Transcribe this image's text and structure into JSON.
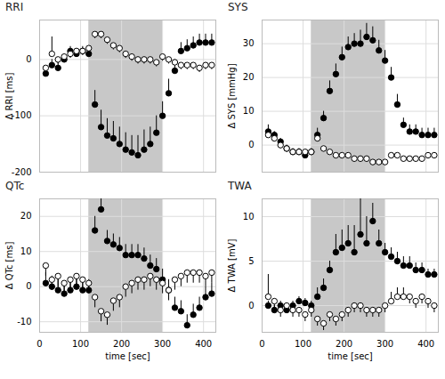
{
  "chart_data": [
    {
      "type": "scatter",
      "title": "RRI",
      "ylabel": "Δ RRI [ms]",
      "tick_labels": "y",
      "grid": true,
      "x": [
        15,
        30,
        45,
        60,
        75,
        90,
        105,
        120,
        135,
        150,
        165,
        180,
        195,
        210,
        225,
        240,
        255,
        270,
        285,
        300,
        315,
        330,
        345,
        360,
        375,
        390,
        405,
        420
      ],
      "xlim": [
        0,
        430
      ],
      "xticks": [
        0,
        100,
        200,
        300,
        400
      ],
      "ylim": [
        -200,
        70
      ],
      "yticks": [
        -200,
        -100,
        0
      ],
      "highlight": [
        120,
        300
      ],
      "series": [
        {
          "color": "#000000",
          "marker": "filled_circle",
          "values": [
            -25,
            -10,
            -15,
            0,
            15,
            10,
            15,
            10,
            -80,
            -120,
            -135,
            -140,
            -150,
            -160,
            -165,
            -170,
            -160,
            -150,
            -130,
            -100,
            -60,
            -20,
            15,
            20,
            25,
            30,
            30,
            30
          ],
          "error": [
            10,
            10,
            10,
            8,
            8,
            8,
            8,
            8,
            25,
            30,
            30,
            30,
            30,
            30,
            30,
            35,
            35,
            30,
            30,
            25,
            25,
            20,
            15,
            15,
            15,
            15,
            15,
            15
          ]
        },
        {
          "color": "#000000",
          "marker": "open_circle",
          "values": [
            -15,
            10,
            0,
            5,
            10,
            15,
            15,
            20,
            45,
            45,
            35,
            25,
            20,
            10,
            5,
            0,
            0,
            0,
            -5,
            5,
            0,
            -5,
            -10,
            -10,
            -10,
            -15,
            -10,
            -10
          ],
          "error": [
            -15,
            30,
            -8,
            -8,
            -8,
            -8,
            -8,
            -8,
            -8,
            -8,
            -8,
            -8,
            -8,
            -8,
            -8,
            -8,
            -8,
            -8,
            -8,
            -8,
            -8,
            -8,
            -8,
            -8,
            -8,
            -8,
            -8,
            -8
          ]
        }
      ]
    },
    {
      "type": "scatter",
      "title": "SYS",
      "ylabel": "Δ SYS [mmHg]",
      "tick_labels": "y",
      "grid": true,
      "x": [
        15,
        30,
        45,
        60,
        75,
        90,
        105,
        120,
        135,
        150,
        165,
        180,
        195,
        210,
        225,
        240,
        255,
        270,
        285,
        300,
        315,
        330,
        345,
        360,
        375,
        390,
        405,
        420
      ],
      "xlim": [
        0,
        430
      ],
      "xticks": [
        0,
        100,
        200,
        300,
        400
      ],
      "ylim": [
        -8,
        37
      ],
      "yticks": [
        0,
        10,
        20,
        30
      ],
      "highlight": [
        120,
        300
      ],
      "series": [
        {
          "color": "#000000",
          "marker": "filled_circle",
          "values": [
            4,
            3,
            1,
            -1,
            -2,
            -2,
            -3,
            -2,
            3,
            8,
            16,
            21,
            26,
            29,
            30,
            30,
            32,
            31,
            28,
            25,
            20,
            12,
            6,
            4,
            4,
            3,
            3,
            3
          ],
          "error": [
            2,
            1,
            1,
            1,
            1,
            1,
            1,
            1,
            2,
            2,
            3,
            3,
            3,
            3,
            3,
            4,
            4,
            4,
            3,
            3,
            3,
            3,
            2,
            2,
            2,
            2,
            2,
            2
          ]
        },
        {
          "color": "#000000",
          "marker": "open_circle",
          "values": [
            3,
            2,
            0,
            -1,
            -2,
            -2,
            -2,
            -2,
            2,
            -1,
            -2,
            -3,
            -3,
            -3,
            -4,
            -4,
            -4,
            -5,
            -5,
            -5,
            -3,
            -3,
            -4,
            -4,
            -4,
            -4,
            -3,
            -3
          ],
          "error": [
            -1,
            -1,
            -1,
            -1,
            -1,
            -1,
            -1,
            -1,
            -1,
            -1,
            -1,
            -1,
            -1,
            -1,
            -1,
            -1,
            -1,
            -1,
            -1,
            -1,
            -1,
            -1,
            -1,
            -1,
            -1,
            -1,
            -1,
            -1
          ]
        }
      ]
    },
    {
      "type": "scatter",
      "title": "QTc",
      "ylabel": "Δ QTc [ms]",
      "xlabel": "time [sec]",
      "grid": true,
      "x": [
        15,
        30,
        45,
        60,
        75,
        90,
        105,
        120,
        135,
        150,
        165,
        180,
        195,
        210,
        225,
        240,
        255,
        270,
        285,
        300,
        315,
        330,
        345,
        360,
        375,
        390,
        405,
        420
      ],
      "xlim": [
        0,
        430
      ],
      "xticks": [
        0,
        100,
        200,
        300,
        400
      ],
      "ylim": [
        -13,
        25
      ],
      "yticks": [
        -10,
        0,
        10,
        20
      ],
      "highlight": [
        120,
        300
      ],
      "series": [
        {
          "color": "#000000",
          "marker": "filled_circle",
          "values": [
            1,
            0,
            -1,
            -2,
            -1,
            0,
            -1,
            -1,
            16,
            22,
            13,
            12,
            11,
            9,
            9,
            9,
            8,
            6,
            5,
            2,
            -1,
            -6,
            -7,
            -11,
            -8,
            -6,
            -3,
            -2
          ],
          "error": [
            3,
            3,
            3,
            3,
            3,
            3,
            3,
            3,
            4,
            3,
            3,
            3,
            3,
            3,
            3,
            3,
            3,
            3,
            3,
            3,
            3,
            3,
            3,
            3,
            3,
            3,
            3,
            3
          ]
        },
        {
          "color": "#000000",
          "marker": "open_circle",
          "values": [
            6,
            2,
            3,
            1,
            2,
            3,
            2,
            1,
            -3,
            -7,
            -8,
            -4,
            -3,
            0,
            1,
            2,
            2,
            3,
            2,
            1,
            -1,
            2,
            3,
            4,
            4,
            4,
            3,
            4
          ],
          "error": [
            -3,
            -3,
            -3,
            -3,
            -3,
            -3,
            -3,
            -3,
            -3,
            -3,
            -3,
            -3,
            -3,
            -3,
            -3,
            -3,
            -3,
            -3,
            -3,
            -3,
            -3,
            -3,
            -3,
            -3,
            -3,
            -3,
            -3,
            -3
          ]
        }
      ]
    },
    {
      "type": "scatter",
      "title": "TWA",
      "ylabel": "Δ TWA [mV]",
      "xlabel": "time [sec]",
      "grid": true,
      "x": [
        15,
        30,
        45,
        60,
        75,
        90,
        105,
        120,
        135,
        150,
        165,
        180,
        195,
        210,
        225,
        240,
        255,
        270,
        285,
        300,
        315,
        330,
        345,
        360,
        375,
        390,
        405,
        420
      ],
      "xlim": [
        0,
        430
      ],
      "xticks": [
        0,
        100,
        200,
        300,
        400
      ],
      "ylim": [
        -3,
        12
      ],
      "yticks": [
        0,
        5,
        10
      ],
      "highlight": [
        120,
        300
      ],
      "series": [
        {
          "color": "#000000",
          "marker": "filled_circle",
          "values": [
            0,
            -0.5,
            0,
            -0.5,
            0,
            0.5,
            0.3,
            0,
            1,
            2,
            4,
            6,
            6.5,
            7,
            6,
            8,
            7,
            9.5,
            7,
            6,
            5.5,
            5,
            4.5,
            4.5,
            4,
            4,
            3.5,
            3.5
          ],
          "error": [
            0.5,
            0.5,
            0.5,
            0.5,
            0.5,
            0.5,
            0.5,
            0.5,
            1,
            1,
            1,
            2,
            2,
            2,
            3,
            4,
            3,
            2,
            1.5,
            1,
            1,
            1,
            1,
            1,
            0.8,
            0.8,
            0.6,
            0.6
          ]
        },
        {
          "color": "#000000",
          "marker": "open_circle",
          "values": [
            1,
            0.5,
            -0.5,
            0,
            -0.5,
            -0.5,
            -1,
            -0.5,
            -1.5,
            -2,
            -1,
            -1.5,
            -1,
            -0.5,
            0,
            0,
            -0.5,
            -0.5,
            -0.5,
            0,
            0.5,
            1,
            1,
            1,
            0.5,
            1,
            0.5,
            0
          ],
          "error": [
            2.5,
            -0.8,
            -0.8,
            -0.8,
            -0.8,
            -0.8,
            -0.8,
            -0.8,
            -0.8,
            -0.8,
            -0.8,
            -0.8,
            -0.8,
            -0.8,
            -0.8,
            -0.8,
            -0.8,
            -0.8,
            -0.8,
            -0.8,
            1,
            1,
            1,
            -0.8,
            -0.8,
            -0.8,
            -0.8,
            -0.8
          ]
        }
      ]
    }
  ]
}
